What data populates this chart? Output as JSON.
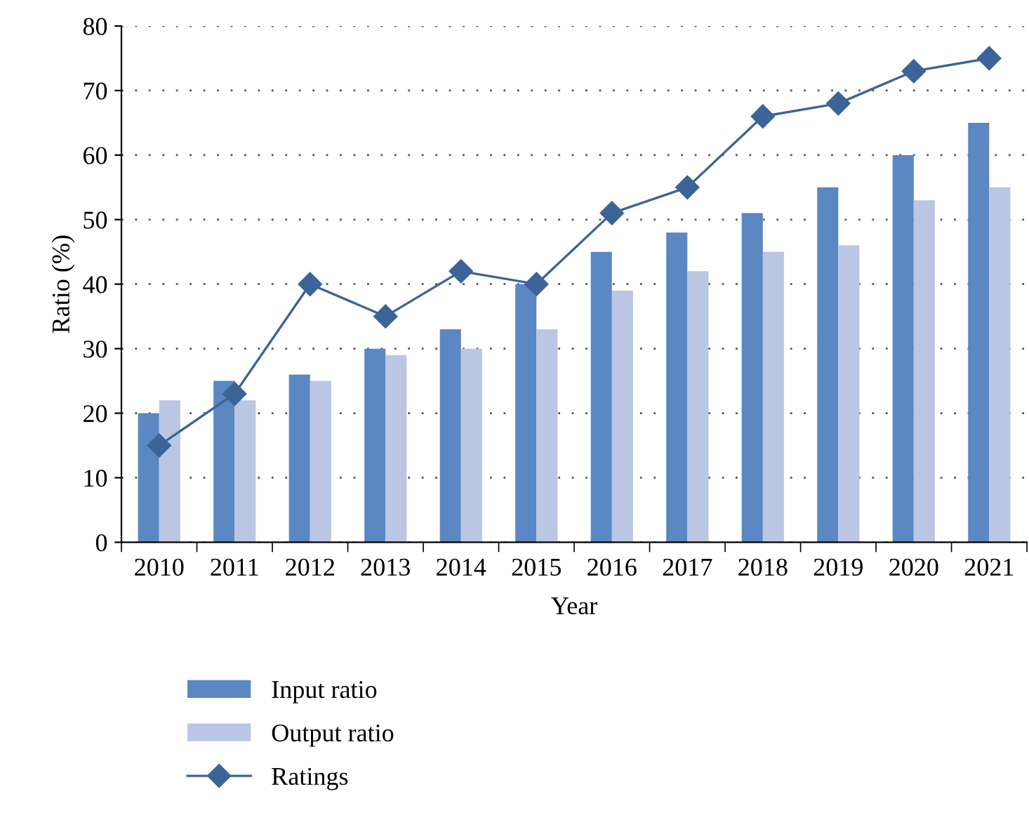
{
  "chart_data": {
    "type": "bar",
    "xlabel": "Year",
    "ylabel": "Ratio (%)",
    "categories": [
      "2010",
      "2011",
      "2012",
      "2013",
      "2014",
      "2015",
      "2016",
      "2017",
      "2018",
      "2019",
      "2020",
      "2021"
    ],
    "series": [
      {
        "name": "Input ratio",
        "color": "#5b87c3",
        "values": [
          20,
          25,
          26,
          30,
          33,
          40,
          45,
          48,
          51,
          55,
          60,
          65
        ]
      },
      {
        "name": "Output ratio",
        "color": "#bac6e3",
        "values": [
          22,
          22,
          25,
          29,
          30,
          33,
          39,
          42,
          45,
          46,
          53,
          55
        ]
      },
      {
        "name": "Ratings",
        "type": "line",
        "color": "#3d6499",
        "marker": "diamond",
        "line_style": "solid",
        "values": [
          15,
          23,
          40,
          35,
          42,
          40,
          51,
          55,
          66,
          68,
          73,
          75
        ]
      }
    ],
    "ylim": [
      0,
      80
    ],
    "yticks": [
      0,
      10,
      20,
      30,
      40,
      50,
      60,
      70,
      80
    ],
    "grid": "y",
    "legend": "bottom left"
  }
}
